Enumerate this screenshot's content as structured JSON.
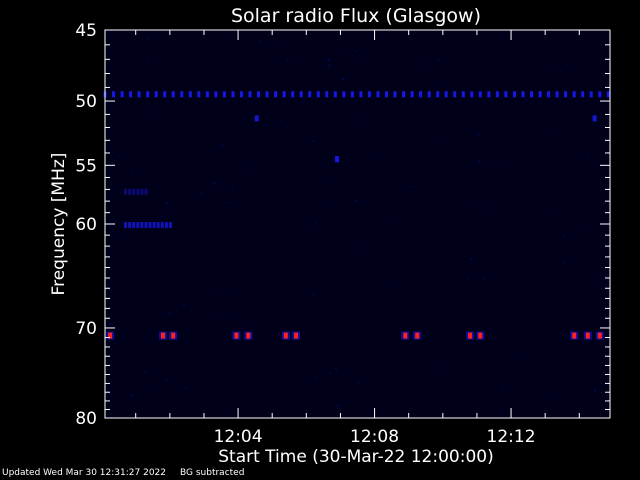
{
  "chart_data": {
    "type": "heatmap",
    "title": "Solar radio Flux (Glasgow)",
    "xlabel": "Start Time (30-Mar-22 12:00:00)",
    "ylabel": "Frequency [MHz]",
    "x_unit": "minutes after 12:00:00",
    "xlim": [
      0.1,
      14.9
    ],
    "ylim": [
      45,
      80
    ],
    "y_reversed": true,
    "y_scale": "log",
    "x_ticks": [
      {
        "value": 4,
        "label": "12:04"
      },
      {
        "value": 8,
        "label": "12:08"
      },
      {
        "value": 12,
        "label": "12:12"
      }
    ],
    "y_ticks": [
      {
        "value": 45,
        "label": "45"
      },
      {
        "value": 50,
        "label": "50"
      },
      {
        "value": 55,
        "label": "55"
      },
      {
        "value": 60,
        "label": "60"
      },
      {
        "value": 70,
        "label": "70"
      },
      {
        "value": 80,
        "label": "80"
      }
    ],
    "background_color": "#00001a",
    "low_color": "#1a1aff",
    "high_color": "#ff2020",
    "background_noise": 0.08,
    "features": [
      {
        "type": "band",
        "freq": 49.5,
        "x_start": 0.1,
        "x_end": 14.9,
        "period": 0.25,
        "intensity": 0.45
      },
      {
        "type": "band",
        "freq": 60.1,
        "x_start": 0.7,
        "x_end": 2.1,
        "period": 0.12,
        "intensity": 0.35
      },
      {
        "type": "band",
        "freq": 57.2,
        "x_start": 0.7,
        "x_end": 1.4,
        "period": 0.12,
        "intensity": 0.2
      },
      {
        "type": "spot",
        "freq": 51.3,
        "x": 4.55,
        "intensity": 0.45
      },
      {
        "type": "spot",
        "freq": 51.3,
        "x": 14.45,
        "intensity": 0.45
      },
      {
        "type": "spot",
        "freq": 54.5,
        "x": 6.9,
        "intensity": 0.5
      },
      {
        "type": "spot",
        "freq": 70.8,
        "x": 0.25,
        "intensity": 1.0
      },
      {
        "type": "spot",
        "freq": 70.8,
        "x": 1.8,
        "intensity": 1.0
      },
      {
        "type": "spot",
        "freq": 70.8,
        "x": 2.1,
        "intensity": 1.0
      },
      {
        "type": "spot",
        "freq": 70.8,
        "x": 3.95,
        "intensity": 1.0
      },
      {
        "type": "spot",
        "freq": 70.8,
        "x": 4.3,
        "intensity": 1.0
      },
      {
        "type": "spot",
        "freq": 70.8,
        "x": 5.4,
        "intensity": 1.0
      },
      {
        "type": "spot",
        "freq": 70.8,
        "x": 5.7,
        "intensity": 1.0
      },
      {
        "type": "spot",
        "freq": 70.8,
        "x": 8.9,
        "intensity": 1.0
      },
      {
        "type": "spot",
        "freq": 70.8,
        "x": 9.25,
        "intensity": 1.0
      },
      {
        "type": "spot",
        "freq": 70.8,
        "x": 10.8,
        "intensity": 1.0
      },
      {
        "type": "spot",
        "freq": 70.8,
        "x": 11.1,
        "intensity": 1.0
      },
      {
        "type": "spot",
        "freq": 70.8,
        "x": 13.85,
        "intensity": 1.0
      },
      {
        "type": "spot",
        "freq": 70.8,
        "x": 14.25,
        "intensity": 1.0
      },
      {
        "type": "spot",
        "freq": 70.8,
        "x": 14.6,
        "intensity": 1.0
      }
    ]
  },
  "footer": {
    "updated": "Updated Wed Mar 30 12:31:27 2022",
    "note": "BG subtracted"
  }
}
